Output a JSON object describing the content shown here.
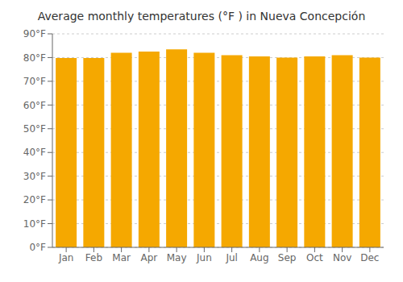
{
  "chart_data": {
    "type": "bar",
    "title": "Average monthly temperatures (°F ) in Nueva Concepción",
    "categories": [
      "Jan",
      "Feb",
      "Mar",
      "Apr",
      "May",
      "Jun",
      "Jul",
      "Aug",
      "Sep",
      "Oct",
      "Nov",
      "Dec"
    ],
    "values": [
      79.8,
      79.8,
      82.0,
      82.5,
      83.5,
      82.0,
      81.0,
      80.5,
      80.0,
      80.5,
      81.0,
      80.0
    ],
    "color": "#F5A800",
    "ylim": [
      0,
      90
    ],
    "yticks": [
      {
        "value": 0,
        "label": "0°F"
      },
      {
        "value": 10,
        "label": "10°F"
      },
      {
        "value": 20,
        "label": "20°F"
      },
      {
        "value": 30,
        "label": "30°F"
      },
      {
        "value": 40,
        "label": "40°F"
      },
      {
        "value": 50,
        "label": "50°F"
      },
      {
        "value": 60,
        "label": "60°F"
      },
      {
        "value": 70,
        "label": "70°F"
      },
      {
        "value": 80,
        "label": "80°F"
      },
      {
        "value": 90,
        "label": "90°F"
      }
    ],
    "grid": true
  }
}
